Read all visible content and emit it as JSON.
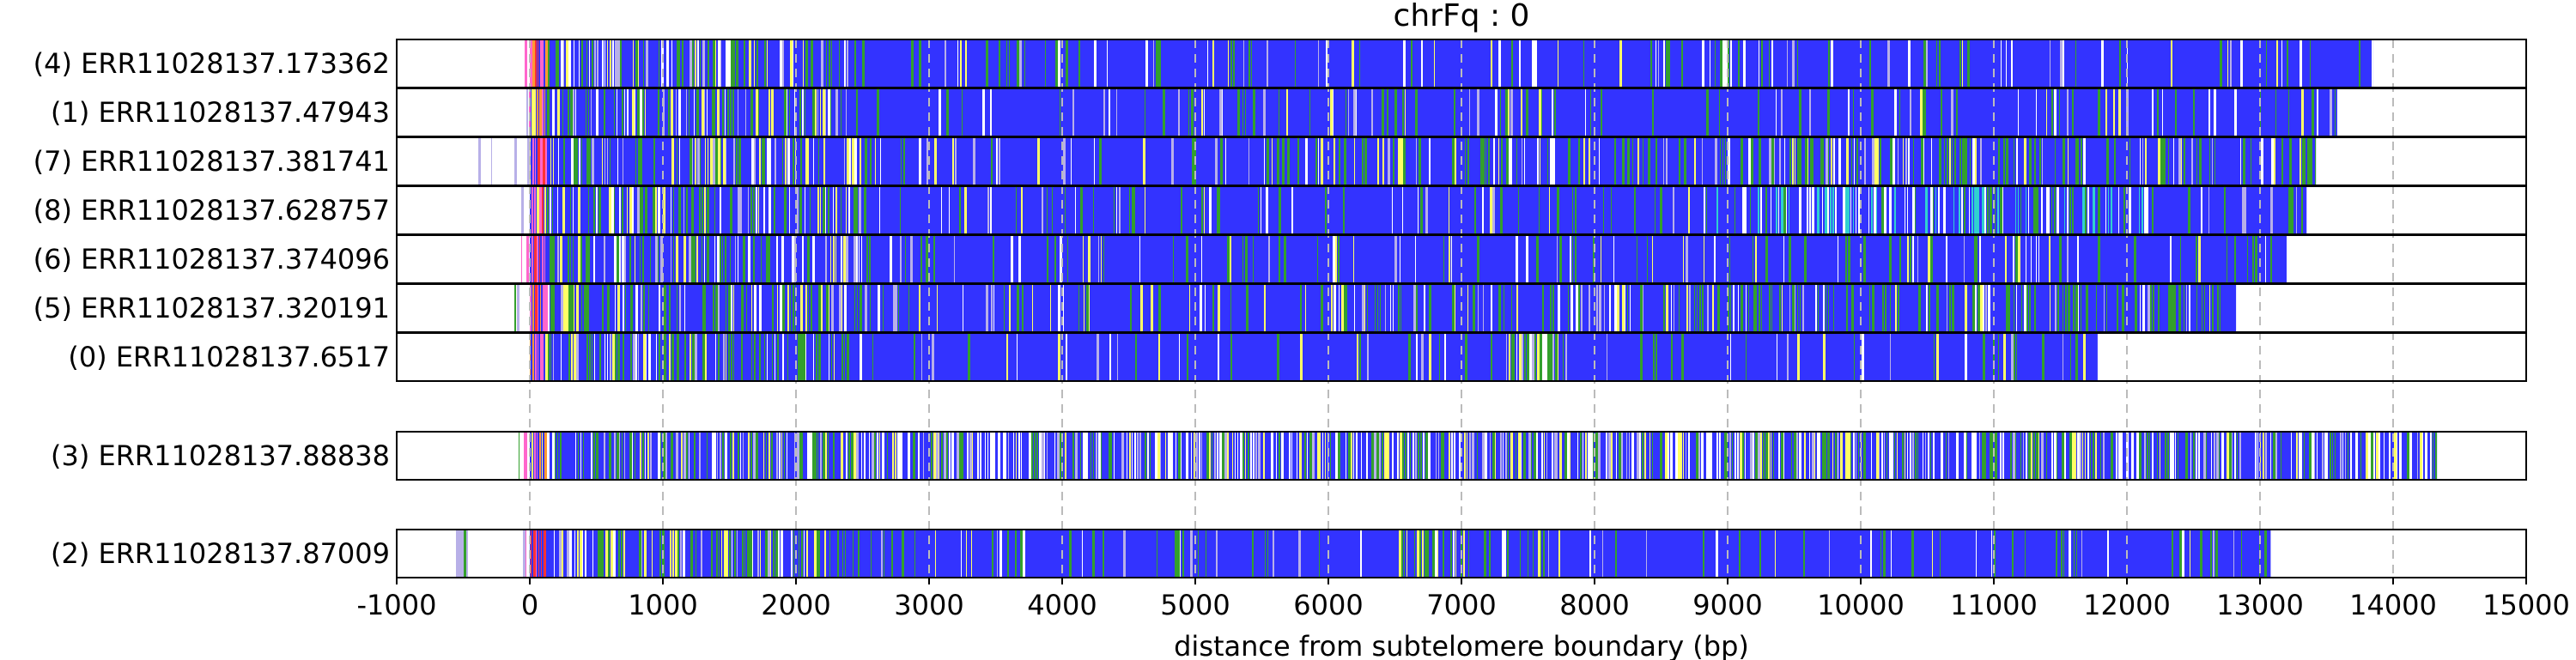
{
  "chart_data": {
    "type": "heatmap",
    "title": "chrFq : 0",
    "xlabel": "distance from subtelomere boundary (bp)",
    "ylabel": "",
    "xlim": [
      -1000,
      15000
    ],
    "xticks": [
      -1000,
      0,
      1000,
      2000,
      3000,
      4000,
      5000,
      6000,
      7000,
      8000,
      9000,
      10000,
      11000,
      12000,
      13000,
      14000,
      15000
    ],
    "grid": "vertical dashed gridlines at each x tick",
    "groups": [
      {
        "reads": [
          {
            "label": "(4) ERR11028137.173362",
            "start": -150,
            "end": 13850,
            "pattern": "mostly blue with green/yellow bands near the start and scattered light bands"
          },
          {
            "label": "(1) ERR11028137.47943",
            "start": -80,
            "end": 13580,
            "pattern": "mostly blue"
          },
          {
            "label": "(7) ERR11028137.381741",
            "start": -420,
            "end": 13420,
            "pattern": "mixed green and blue, blue-dominant"
          },
          {
            "label": "(8) ERR11028137.628757",
            "start": -60,
            "end": 13350,
            "pattern": "blue with cyan/white region near 9000-12000"
          },
          {
            "label": "(6) ERR11028137.374096",
            "start": -60,
            "end": 13200,
            "pattern": "blue with green band near 7400-7800"
          },
          {
            "label": "(5) ERR11028137.320191",
            "start": -150,
            "end": 12820,
            "pattern": "blue with mixed green/yellow segments"
          },
          {
            "label": "(0) ERR11028137.6517",
            "start": -150,
            "end": 11780,
            "pattern": "blue with many green bands"
          }
        ]
      },
      {
        "reads": [
          {
            "label": "(3) ERR11028137.88838",
            "start": -80,
            "end": 14330,
            "pattern": "highly mixed white/green/yellow/blue along whole length"
          }
        ]
      },
      {
        "reads": [
          {
            "label": "(2) ERR11028137.87009",
            "start": -550,
            "end": 13080,
            "pattern": "blue with green bands near start and 6500-7500"
          }
        ]
      }
    ],
    "colors": {
      "blue": "#3333ff",
      "green": "#33a02c",
      "yellow": "#ffff66",
      "white": "#ffffff",
      "lavender": "#b8b0e8",
      "cyan": "#30d0d0",
      "red": "#ff3333",
      "orange": "#ff9933",
      "pink": "#ff66cc",
      "grid": "#bbbbbb",
      "frame": "#000000"
    }
  }
}
